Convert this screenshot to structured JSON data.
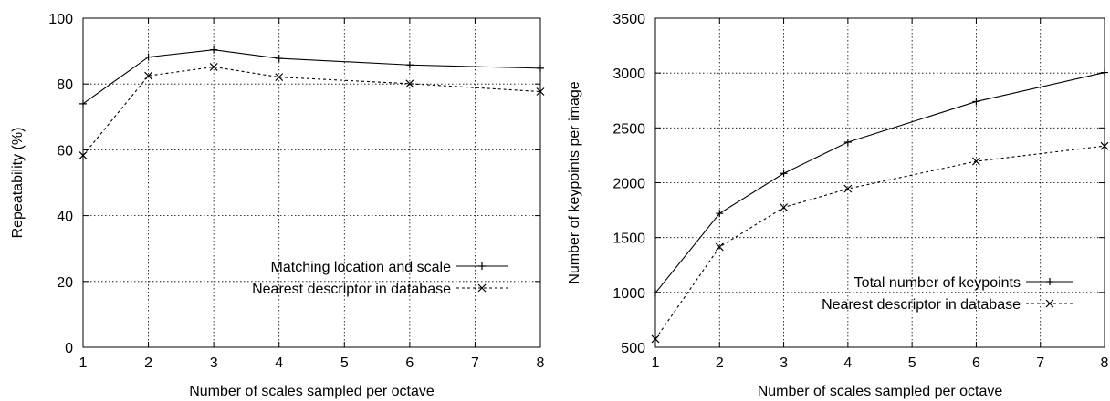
{
  "chart_data": [
    {
      "type": "line",
      "x": [
        1,
        2,
        3,
        4,
        6,
        8
      ],
      "xlabel": "Number of scales sampled per octave",
      "ylabel": "Repeatability (%)",
      "xlim": [
        1,
        8
      ],
      "ylim": [
        0,
        100
      ],
      "xticks": [
        1,
        2,
        3,
        4,
        5,
        6,
        7,
        8
      ],
      "yticks": [
        0,
        20,
        40,
        60,
        80,
        100
      ],
      "grid": true,
      "legend_position": "bottom-right",
      "series": [
        {
          "name": "Matching location and scale",
          "values": [
            74,
            88.2,
            90.4,
            87.8,
            85.8,
            84.8
          ],
          "marker": "plus",
          "dash": "solid"
        },
        {
          "name": "Nearest descriptor in database",
          "values": [
            58.3,
            82.5,
            85.2,
            82.1,
            80.1,
            77.7
          ],
          "marker": "x",
          "dash": "dashed"
        }
      ]
    },
    {
      "type": "line",
      "x": [
        1,
        2,
        3,
        4,
        6,
        8
      ],
      "xlabel": "Number of scales sampled per octave",
      "ylabel": "Number of keypoints per image",
      "xlim": [
        1,
        8
      ],
      "ylim": [
        500,
        3500
      ],
      "xticks": [
        1,
        2,
        3,
        4,
        5,
        6,
        7,
        8
      ],
      "yticks": [
        500,
        1000,
        1500,
        2000,
        2500,
        3000,
        3500
      ],
      "grid": true,
      "legend_position": "bottom-right",
      "series": [
        {
          "name": "Total number of keypoints",
          "values": [
            995,
            1720,
            2085,
            2370,
            2740,
            3005
          ],
          "marker": "plus",
          "dash": "solid"
        },
        {
          "name": "Nearest descriptor in database",
          "values": [
            575,
            1415,
            1775,
            1945,
            2195,
            2335
          ],
          "marker": "x",
          "dash": "dashed"
        }
      ]
    }
  ]
}
